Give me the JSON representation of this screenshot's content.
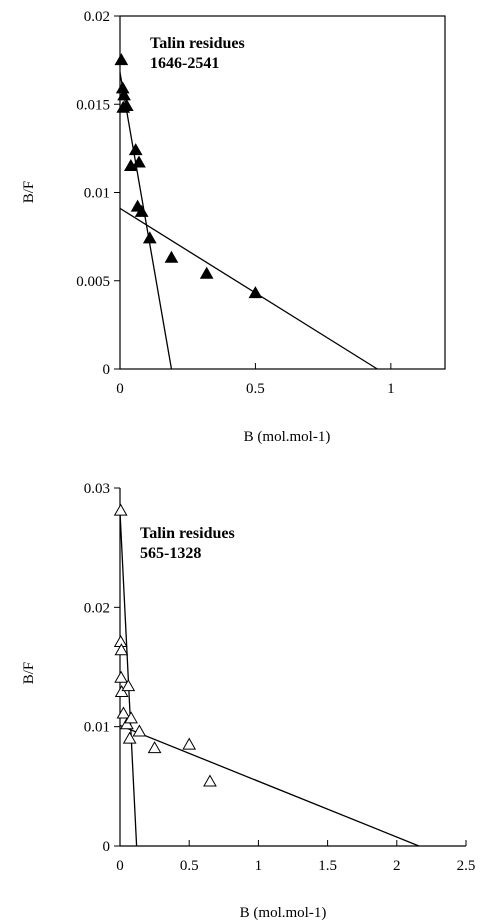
{
  "chart_data": [
    {
      "type": "scatter",
      "title_lines": [
        "Talin residues",
        "1646-2541"
      ],
      "xlabel": "B (mol.mol-1)",
      "ylabel": "B/F",
      "xlim": [
        0,
        1.2
      ],
      "ylim": [
        0,
        0.02
      ],
      "x_ticks": [
        "0",
        "0.5",
        "1"
      ],
      "y_ticks": [
        "0",
        "0.005",
        "0.01",
        "0.015",
        "0.02"
      ],
      "marker": "filled-triangle",
      "points": [
        {
          "x": 0.005,
          "y": 0.0175
        },
        {
          "x": 0.01,
          "y": 0.0159
        },
        {
          "x": 0.015,
          "y": 0.0155
        },
        {
          "x": 0.012,
          "y": 0.0148
        },
        {
          "x": 0.025,
          "y": 0.0149
        },
        {
          "x": 0.04,
          "y": 0.0115
        },
        {
          "x": 0.058,
          "y": 0.0124
        },
        {
          "x": 0.07,
          "y": 0.0117
        },
        {
          "x": 0.065,
          "y": 0.0092
        },
        {
          "x": 0.08,
          "y": 0.0089
        },
        {
          "x": 0.11,
          "y": 0.0074
        },
        {
          "x": 0.19,
          "y": 0.0063
        },
        {
          "x": 0.32,
          "y": 0.0054
        },
        {
          "x": 0.5,
          "y": 0.0043
        }
      ],
      "fit_lines": [
        {
          "x": [
            0,
            0.19
          ],
          "y": [
            0.0168,
            0
          ]
        },
        {
          "x": [
            0,
            0.95
          ],
          "y": [
            0.0091,
            0
          ]
        }
      ]
    },
    {
      "type": "scatter",
      "title_lines": [
        "Talin residues",
        "565-1328"
      ],
      "xlabel": "B (mol.mol-1)",
      "ylabel": "B/F",
      "xlim": [
        0,
        2.5
      ],
      "ylim": [
        0,
        0.03
      ],
      "x_ticks": [
        "0",
        "0.5",
        "1",
        "1.5",
        "2",
        "2.5"
      ],
      "y_ticks": [
        "0",
        "0.01",
        "0.02",
        "0.03"
      ],
      "marker": "open-triangle",
      "points": [
        {
          "x": 0.005,
          "y": 0.0281
        },
        {
          "x": 0.005,
          "y": 0.0171
        },
        {
          "x": 0.01,
          "y": 0.0164
        },
        {
          "x": 0.008,
          "y": 0.0141
        },
        {
          "x": 0.012,
          "y": 0.0129
        },
        {
          "x": 0.025,
          "y": 0.0111
        },
        {
          "x": 0.05,
          "y": 0.0102
        },
        {
          "x": 0.06,
          "y": 0.0134
        },
        {
          "x": 0.08,
          "y": 0.0107
        },
        {
          "x": 0.07,
          "y": 0.009
        },
        {
          "x": 0.14,
          "y": 0.0096
        },
        {
          "x": 0.25,
          "y": 0.0082
        },
        {
          "x": 0.5,
          "y": 0.0085
        },
        {
          "x": 0.65,
          "y": 0.0054
        }
      ],
      "fit_lines": [
        {
          "x": [
            0,
            0.12
          ],
          "y": [
            0.028,
            0
          ]
        },
        {
          "x": [
            0,
            2.16
          ],
          "y": [
            0.0101,
            0
          ]
        }
      ]
    }
  ]
}
